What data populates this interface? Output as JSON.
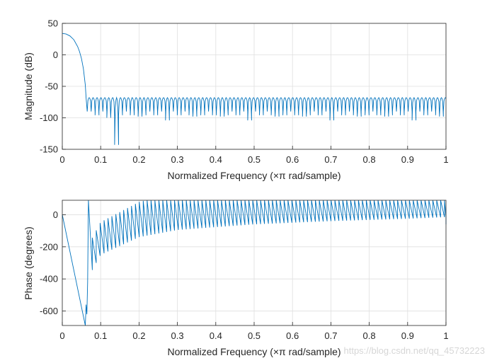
{
  "colors": {
    "line": "#0072BD",
    "grid": "#dfdfdf",
    "axis": "#262626",
    "background": "#ffffff"
  },
  "watermark": "https://blog.csdn.net/qq_45732223",
  "chart_data": [
    {
      "type": "line",
      "xlabel": "Normalized Frequency  (×π rad/sample)",
      "ylabel": "Magnitude (dB)",
      "xlim": [
        0,
        1
      ],
      "ylim": [
        -150,
        50
      ],
      "xticks": [
        "0",
        "0.1",
        "0.2",
        "0.3",
        "0.4",
        "0.5",
        "0.6",
        "0.7",
        "0.8",
        "0.9",
        "1"
      ],
      "yticks": [
        "50",
        "0",
        "-50",
        "-100",
        "-150"
      ],
      "grid": true,
      "series": [
        {
          "x": [
            0,
            0.01,
            0.02,
            0.03,
            0.04,
            0.045,
            0.05,
            0.055,
            0.06,
            0.062,
            0.065,
            0.068,
            0.07,
            0.072,
            0.075,
            0.08,
            0.085,
            0.09,
            0.1,
            0.11,
            0.12,
            0.13,
            0.135,
            0.14,
            0.2,
            0.3,
            0.5,
            0.7,
            0.9,
            1.0
          ],
          "values": [
            34,
            33,
            30,
            24,
            13,
            5,
            -6,
            -22,
            -48,
            -68,
            -75,
            -70,
            -78,
            -70,
            -85,
            -70,
            -90,
            -68,
            -72,
            -95,
            -70,
            -80,
            -143,
            -70,
            -72,
            -70,
            -72,
            -70,
            -72,
            -70
          ],
          "sidelobe_level": -68,
          "null_depth_typical": -90,
          "deepest_null": {
            "x": 0.135,
            "y": -143
          }
        }
      ]
    },
    {
      "type": "line",
      "xlabel": "Normalized Frequency  (×π rad/sample)",
      "ylabel": "Phase (degrees)",
      "xlim": [
        0,
        1
      ],
      "ylim": [
        -690,
        90
      ],
      "xticks": [
        "0",
        "0.1",
        "0.2",
        "0.3",
        "0.4",
        "0.5",
        "0.6",
        "0.7",
        "0.8",
        "0.9",
        "1"
      ],
      "yticks": [
        "0",
        "-200",
        "-400",
        "-600"
      ],
      "grid": true,
      "series": [
        {
          "x": [
            0,
            0.02,
            0.04,
            0.06,
            0.065,
            0.07,
            0.1,
            0.2,
            0.3,
            0.5,
            0.7,
            0.9,
            1.0
          ],
          "values": [
            0,
            -230,
            -460,
            -690,
            -420,
            -380,
            -250,
            -130,
            -90,
            -60,
            -40,
            -20,
            -60
          ],
          "sawtooth_low_envelope_at": {
            "x": [
              0.07,
              0.1,
              0.2,
              0.3,
              0.5,
              0.7,
              0.9,
              1.0
            ],
            "y": [
              -380,
              -250,
              -140,
              -95,
              -60,
              -40,
              -25,
              -15
            ]
          },
          "sawtooth_high_envelope": 90
        }
      ]
    }
  ]
}
